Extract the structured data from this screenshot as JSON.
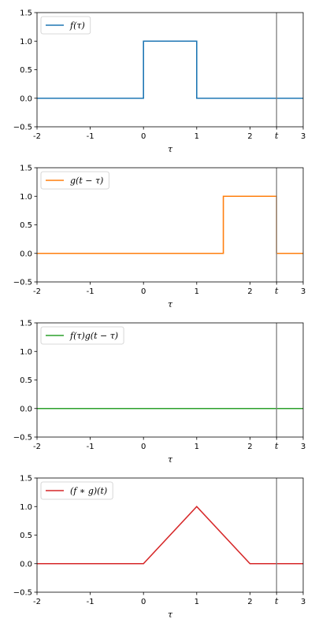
{
  "chart_data": [
    {
      "type": "line",
      "xlabel": "τ",
      "ylabel": "",
      "xlim": [
        -2,
        3
      ],
      "ylim": [
        -0.5,
        1.5
      ],
      "xticks": [
        {
          "value": -2,
          "label": "-2"
        },
        {
          "value": -1,
          "label": "-1"
        },
        {
          "value": 0,
          "label": "0"
        },
        {
          "value": 1,
          "label": "1"
        },
        {
          "value": 2,
          "label": "2"
        },
        {
          "value": 2.5,
          "label": "t"
        },
        {
          "value": 3,
          "label": "3"
        }
      ],
      "yticks": [
        {
          "value": -0.5,
          "label": "−0.5"
        },
        {
          "value": 0.0,
          "label": "0.0"
        },
        {
          "value": 0.5,
          "label": "0.5"
        },
        {
          "value": 1.0,
          "label": "1.0"
        },
        {
          "value": 1.5,
          "label": "1.5"
        }
      ],
      "vline": {
        "x": 2.5,
        "color": "#808080"
      },
      "legend_position": "upper-left",
      "series": [
        {
          "name": "f(τ)",
          "color": "#1f77b4",
          "x": [
            -2,
            0,
            0,
            1,
            1,
            3
          ],
          "y": [
            0,
            0,
            1,
            1,
            0,
            0
          ]
        }
      ]
    },
    {
      "type": "line",
      "xlabel": "τ",
      "ylabel": "",
      "xlim": [
        -2,
        3
      ],
      "ylim": [
        -0.5,
        1.5
      ],
      "xticks": [
        {
          "value": -2,
          "label": "-2"
        },
        {
          "value": -1,
          "label": "-1"
        },
        {
          "value": 0,
          "label": "0"
        },
        {
          "value": 1,
          "label": "1"
        },
        {
          "value": 2,
          "label": "2"
        },
        {
          "value": 2.5,
          "label": "t"
        },
        {
          "value": 3,
          "label": "3"
        }
      ],
      "yticks": [
        {
          "value": -0.5,
          "label": "−0.5"
        },
        {
          "value": 0.0,
          "label": "0.0"
        },
        {
          "value": 0.5,
          "label": "0.5"
        },
        {
          "value": 1.0,
          "label": "1.0"
        },
        {
          "value": 1.5,
          "label": "1.5"
        }
      ],
      "vline": {
        "x": 2.5,
        "color": "#808080"
      },
      "legend_position": "upper-left",
      "series": [
        {
          "name": "g(t − τ)",
          "color": "#ff7f0e",
          "x": [
            -2,
            1.5,
            1.5,
            2.5,
            2.5,
            3
          ],
          "y": [
            0,
            0,
            1,
            1,
            0,
            0
          ]
        }
      ]
    },
    {
      "type": "line",
      "xlabel": "τ",
      "ylabel": "",
      "xlim": [
        -2,
        3
      ],
      "ylim": [
        -0.5,
        1.5
      ],
      "xticks": [
        {
          "value": -2,
          "label": "-2"
        },
        {
          "value": -1,
          "label": "-1"
        },
        {
          "value": 0,
          "label": "0"
        },
        {
          "value": 1,
          "label": "1"
        },
        {
          "value": 2,
          "label": "2"
        },
        {
          "value": 2.5,
          "label": "t"
        },
        {
          "value": 3,
          "label": "3"
        }
      ],
      "yticks": [
        {
          "value": -0.5,
          "label": "−0.5"
        },
        {
          "value": 0.0,
          "label": "0.0"
        },
        {
          "value": 0.5,
          "label": "0.5"
        },
        {
          "value": 1.0,
          "label": "1.0"
        },
        {
          "value": 1.5,
          "label": "1.5"
        }
      ],
      "vline": {
        "x": 2.5,
        "color": "#808080"
      },
      "legend_position": "upper-left",
      "series": [
        {
          "name": "f(τ)g(t − τ)",
          "color": "#2ca02c",
          "x": [
            -2,
            3
          ],
          "y": [
            0,
            0
          ]
        }
      ]
    },
    {
      "type": "line",
      "xlabel": "τ",
      "ylabel": "",
      "xlim": [
        -2,
        3
      ],
      "ylim": [
        -0.5,
        1.5
      ],
      "xticks": [
        {
          "value": -2,
          "label": "-2"
        },
        {
          "value": -1,
          "label": "-1"
        },
        {
          "value": 0,
          "label": "0"
        },
        {
          "value": 1,
          "label": "1"
        },
        {
          "value": 2,
          "label": "2"
        },
        {
          "value": 2.5,
          "label": "t"
        },
        {
          "value": 3,
          "label": "3"
        }
      ],
      "yticks": [
        {
          "value": -0.5,
          "label": "−0.5"
        },
        {
          "value": 0.0,
          "label": "0.0"
        },
        {
          "value": 0.5,
          "label": "0.5"
        },
        {
          "value": 1.0,
          "label": "1.0"
        },
        {
          "value": 1.5,
          "label": "1.5"
        }
      ],
      "vline": {
        "x": 2.5,
        "color": "#808080"
      },
      "legend_position": "upper-left",
      "series": [
        {
          "name": "(f ∗ g)(t)",
          "color": "#d62728",
          "x": [
            -2,
            0,
            1,
            2,
            3
          ],
          "y": [
            0,
            0,
            1,
            0,
            0
          ]
        }
      ]
    }
  ]
}
